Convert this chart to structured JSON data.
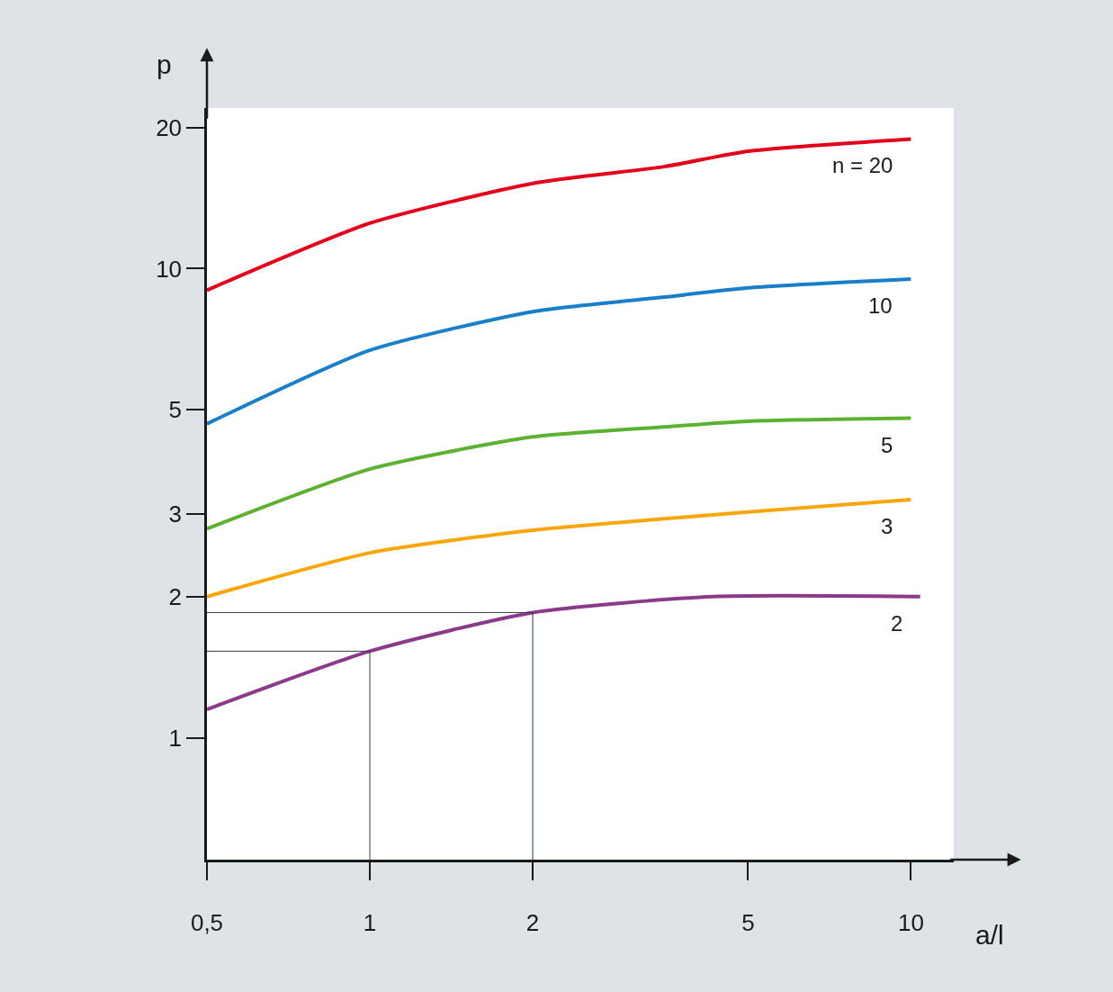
{
  "chart_data": {
    "type": "line",
    "xlabel": "a/l",
    "ylabel": "p",
    "log": "xy",
    "legend": false,
    "marker": "none",
    "line_style": "solid",
    "xlim": [
      0.5,
      12
    ],
    "ylim": [
      0.55,
      22
    ],
    "xticks": [
      {
        "value": 0.5,
        "label": "0,5"
      },
      1,
      2,
      5,
      10
    ],
    "yticks": [
      1,
      2,
      3,
      5,
      10,
      20
    ],
    "x": [
      0.5,
      1,
      2,
      3.5,
      5,
      10
    ],
    "series": [
      {
        "name": "n = 20",
        "color": "#e2001a",
        "values": [
          9.0,
          12.5,
          15.2,
          16.5,
          17.8,
          18.9
        ]
      },
      {
        "name": "10",
        "color": "#1a7fc8",
        "values": [
          4.67,
          6.7,
          8.1,
          8.7,
          9.1,
          9.5
        ]
      },
      {
        "name": "5",
        "color": "#5db130",
        "values": [
          2.79,
          3.74,
          4.38,
          4.6,
          4.73,
          4.8
        ]
      },
      {
        "name": "3",
        "color": "#f7a70d",
        "values": [
          2.0,
          2.48,
          2.77,
          2.93,
          3.03,
          3.22
        ]
      },
      {
        "name": "2",
        "color": "#8b3a8a",
        "x": [
          0.5,
          1,
          2,
          4.3,
          10.4
        ],
        "values": [
          1.15,
          1.53,
          1.85,
          2.0,
          2.0
        ]
      },
      {
        "color": "#2a3f4d",
        "x": [
          0.5,
          1,
          1
        ],
        "values": [
          1.53,
          1.53,
          0.55
        ]
      },
      {
        "color": "#2a3f4d",
        "x": [
          0.5,
          2,
          2
        ],
        "values": [
          1.85,
          1.85,
          0.55
        ]
      }
    ]
  }
}
